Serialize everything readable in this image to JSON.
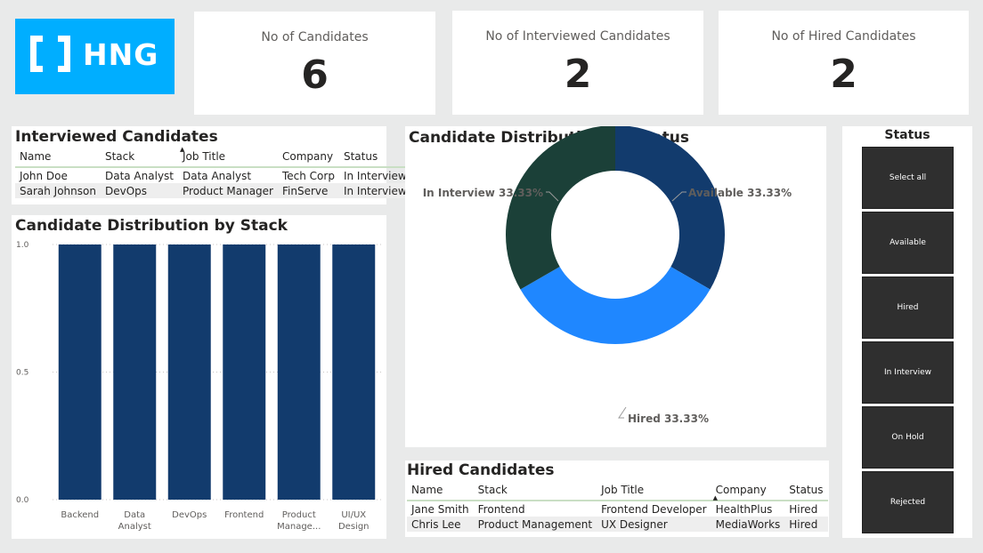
{
  "logo": {
    "text": "[ ] HNG"
  },
  "kpis": {
    "candidates": {
      "label": "No of Candidates",
      "value": "6"
    },
    "interviewed": {
      "label": "No of Interviewed Candidates",
      "value": "2"
    },
    "hired": {
      "label": "No of Hired Candidates",
      "value": "2"
    }
  },
  "interviewed_table": {
    "title": "Interviewed Candidates",
    "headers": [
      "Name",
      "Stack",
      "Job Title",
      "Company",
      "Status"
    ],
    "rows": [
      [
        "John Doe",
        "Data Analyst",
        "Data Analyst",
        "Tech Corp",
        "In Interview"
      ],
      [
        "Sarah Johnson",
        "DevOps",
        "Product Manager",
        "FinServe",
        "In Interview"
      ]
    ]
  },
  "hired_table": {
    "title": "Hired Candidates",
    "headers": [
      "Name",
      "Stack",
      "Job Title",
      "Company",
      "Status"
    ],
    "rows": [
      [
        "Jane Smith",
        "Frontend",
        "Frontend Developer",
        "HealthPlus",
        "Hired"
      ],
      [
        "Chris Lee",
        "Product Management",
        "UX Designer",
        "MediaWorks",
        "Hired"
      ]
    ]
  },
  "status_slicer": {
    "title": "Status",
    "options": [
      "Select all",
      "Available",
      "Hired",
      "In Interview",
      "On Hold",
      "Rejected"
    ]
  },
  "chart_data": [
    {
      "type": "bar",
      "title": "Candidate Distribution by Stack",
      "categories": [
        "Backend",
        "Data Analyst",
        "DevOps",
        "Frontend",
        "Product Manage...",
        "UI/UX Design"
      ],
      "category_lines": [
        [
          "Backend"
        ],
        [
          "Data",
          "Analyst"
        ],
        [
          "DevOps"
        ],
        [
          "Frontend"
        ],
        [
          "Product",
          "Manage..."
        ],
        [
          "UI/UX",
          "Design"
        ]
      ],
      "values": [
        1,
        1,
        1,
        1,
        1,
        1
      ],
      "ylim": [
        0,
        1
      ],
      "yticks": [
        "0.0",
        "0.5",
        "1.0"
      ],
      "xlabel": "",
      "ylabel": "",
      "color": "#123b6d"
    },
    {
      "type": "pie",
      "title": "Candidate Distribution by Status",
      "slices": [
        {
          "label": "Available",
          "value": 33.33,
          "text": "Available 33.33%",
          "color": "#123b6d"
        },
        {
          "label": "Hired",
          "value": 33.33,
          "text": "Hired 33.33%",
          "color": "#1f87ff"
        },
        {
          "label": "In Interview",
          "value": 33.33,
          "text": "In Interview 33.33%",
          "color": "#1b4038"
        }
      ]
    }
  ]
}
